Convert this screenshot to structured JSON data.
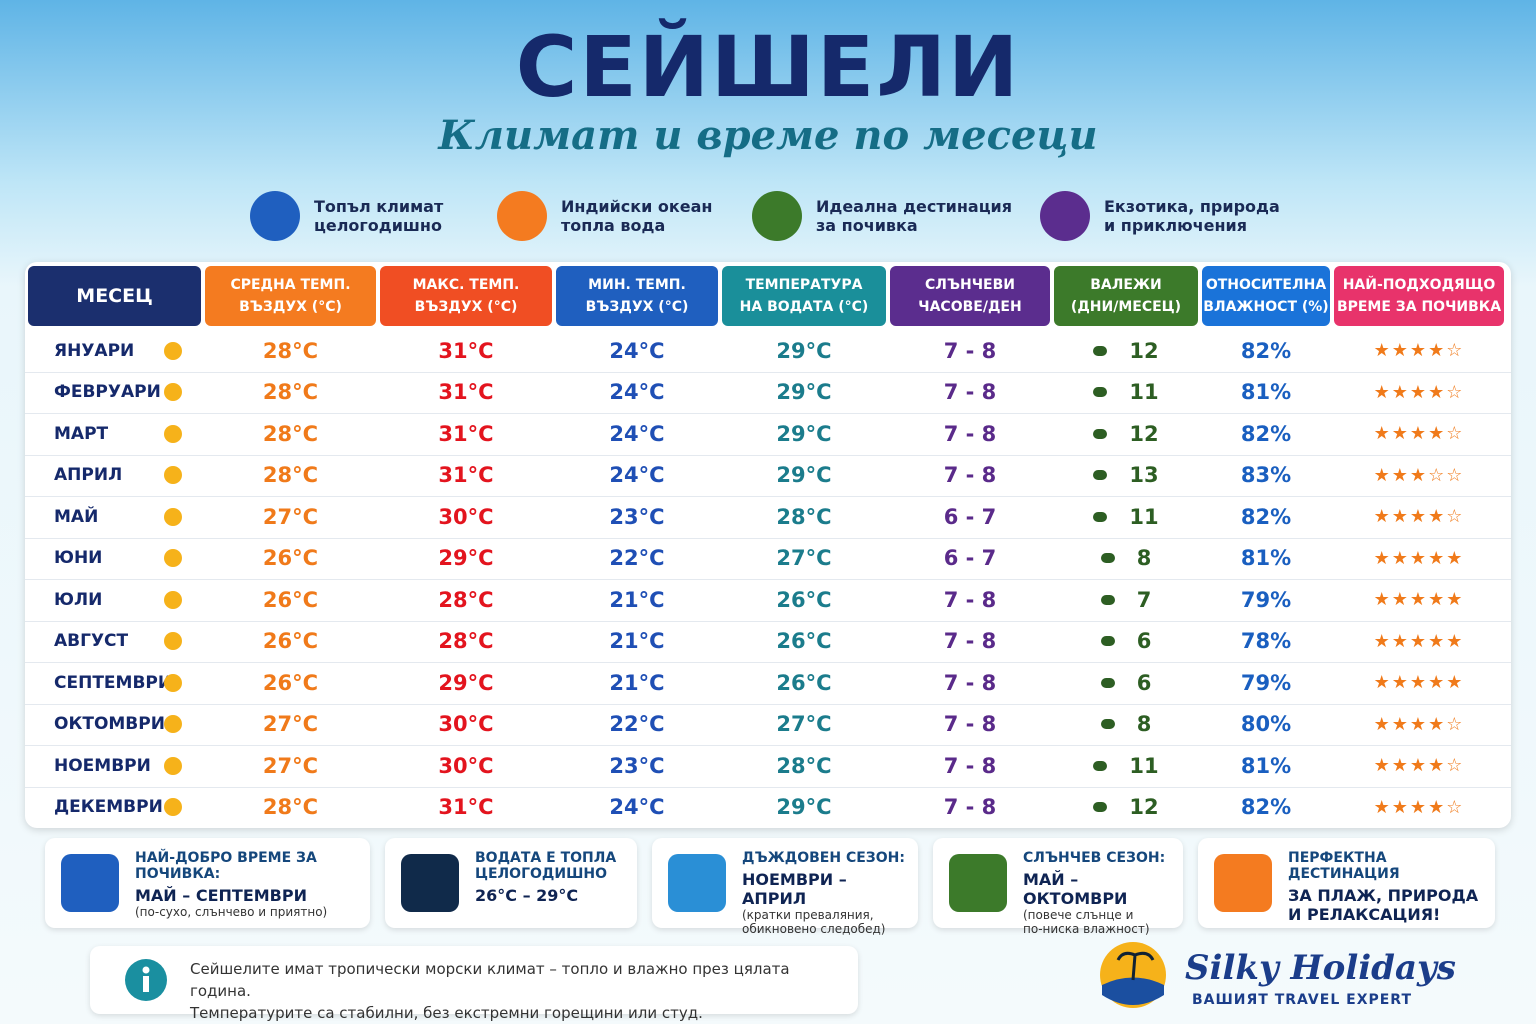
{
  "header": {
    "title": "СЕЙШЕЛИ",
    "subtitle": "Климат и време по месеци"
  },
  "features": [
    {
      "lines": [
        "Топъл климат",
        "целогодишно"
      ]
    },
    {
      "lines": [
        "Индийски океан",
        "топла вода"
      ]
    },
    {
      "lines": [
        "Идеална дестинация",
        "за почивка"
      ]
    },
    {
      "lines": [
        "Екзотика, природа",
        "и приключения"
      ]
    }
  ],
  "table": {
    "columns": [
      {
        "lines": [
          "МЕСЕЦ"
        ]
      },
      {
        "lines": [
          "СРЕДНА ТЕМП.",
          "ВЪЗДУХ (°C)"
        ]
      },
      {
        "lines": [
          "МАКС. ТЕМП.",
          "ВЪЗДУХ (°C)"
        ]
      },
      {
        "lines": [
          "МИН. ТЕМП.",
          "ВЪЗДУХ (°C)"
        ]
      },
      {
        "lines": [
          "ТЕМПЕРАТУРА",
          "НА ВОДАТА (°C)"
        ]
      },
      {
        "lines": [
          "СЛЪНЧЕВИ",
          "ЧАСОВЕ/ДЕН"
        ]
      },
      {
        "lines": [
          "ВАЛЕЖИ",
          "(ДНИ/МЕСЕЦ)"
        ]
      },
      {
        "lines": [
          "ОТНОСИТЕЛНА",
          "ВЛАЖНОСТ (%)"
        ]
      },
      {
        "lines": [
          "НАЙ-ПОДХОДЯЩО",
          "ВРЕМЕ ЗА ПОЧИВКА"
        ]
      }
    ],
    "rows": [
      [
        "ЯНУАРИ",
        "28°C",
        "31°C",
        "24°C",
        "29°C",
        "7 - 8",
        "12",
        "82%",
        "★★★★☆"
      ],
      [
        "ФЕВРУАРИ",
        "28°C",
        "31°C",
        "24°C",
        "29°C",
        "7 - 8",
        "11",
        "81%",
        "★★★★☆"
      ],
      [
        "МАРТ",
        "28°C",
        "31°C",
        "24°C",
        "29°C",
        "7 - 8",
        "12",
        "82%",
        "★★★★☆"
      ],
      [
        "АПРИЛ",
        "28°C",
        "31°C",
        "24°C",
        "29°C",
        "7 - 8",
        "13",
        "83%",
        "★★★☆☆"
      ],
      [
        "МАЙ",
        "27°C",
        "30°C",
        "23°C",
        "28°C",
        "6 - 7",
        "11",
        "82%",
        "★★★★☆"
      ],
      [
        "ЮНИ",
        "26°C",
        "29°C",
        "22°C",
        "27°C",
        "6 - 7",
        "8",
        "81%",
        "★★★★★"
      ],
      [
        "ЮЛИ",
        "26°C",
        "28°C",
        "21°C",
        "26°C",
        "7 - 8",
        "7",
        "79%",
        "★★★★★"
      ],
      [
        "АВГУСТ",
        "26°C",
        "28°C",
        "21°C",
        "26°C",
        "7 - 8",
        "6",
        "78%",
        "★★★★★"
      ],
      [
        "СЕПТЕМВРИ",
        "26°C",
        "29°C",
        "21°C",
        "26°C",
        "7 - 8",
        "6",
        "79%",
        "★★★★★"
      ],
      [
        "ОКТОМВРИ",
        "27°C",
        "30°C",
        "22°C",
        "27°C",
        "7 - 8",
        "8",
        "80%",
        "★★★★☆"
      ],
      [
        "НОЕМВРИ",
        "27°C",
        "30°C",
        "23°C",
        "28°C",
        "7 - 8",
        "11",
        "81%",
        "★★★★☆"
      ],
      [
        "ДЕКЕМВРИ",
        "28°C",
        "31°C",
        "24°C",
        "29°C",
        "7 - 8",
        "12",
        "82%",
        "★★★★☆"
      ]
    ]
  },
  "cards": [
    {
      "title": "НАЙ-ДОБРО ВРЕМЕ ЗА ПОЧИВКА:",
      "main": "МАЙ – СЕПТЕМВРИ",
      "note": [
        "(по-сухо, слънчево и приятно)"
      ]
    },
    {
      "title": "ВОДАТА Е ТОПЛА ЦЕЛОГОДИШНО",
      "main": "26°C – 29°C",
      "note": []
    },
    {
      "title": "ДЪЖДОВЕН СЕЗОН:",
      "main": "НОЕМВРИ – АПРИЛ",
      "note": [
        "(кратки преваляния,",
        "обикновено следобед)"
      ]
    },
    {
      "title": "СЛЪНЧЕВ СЕЗОН:",
      "main": "МАЙ – ОКТОМВРИ",
      "note": [
        "(повече слънце и",
        "по-ниска влажност)"
      ]
    },
    {
      "title": "ПЕРФЕКТНА ДЕСТИНАЦИЯ",
      "main": "ЗА ПЛАЖ, ПРИРОДА И РЕЛАКСАЦИЯ!",
      "note": []
    }
  ],
  "info": {
    "lines": [
      "Сейшелите имат тропически морски климат – топло и влажно през цялата година.",
      "Температурите са стабилни, без екстремни горещини или студ."
    ]
  },
  "brand": {
    "name": "Silky Holidays",
    "tagline": "ВАШИЯТ TRAVEL EXPERT"
  }
}
